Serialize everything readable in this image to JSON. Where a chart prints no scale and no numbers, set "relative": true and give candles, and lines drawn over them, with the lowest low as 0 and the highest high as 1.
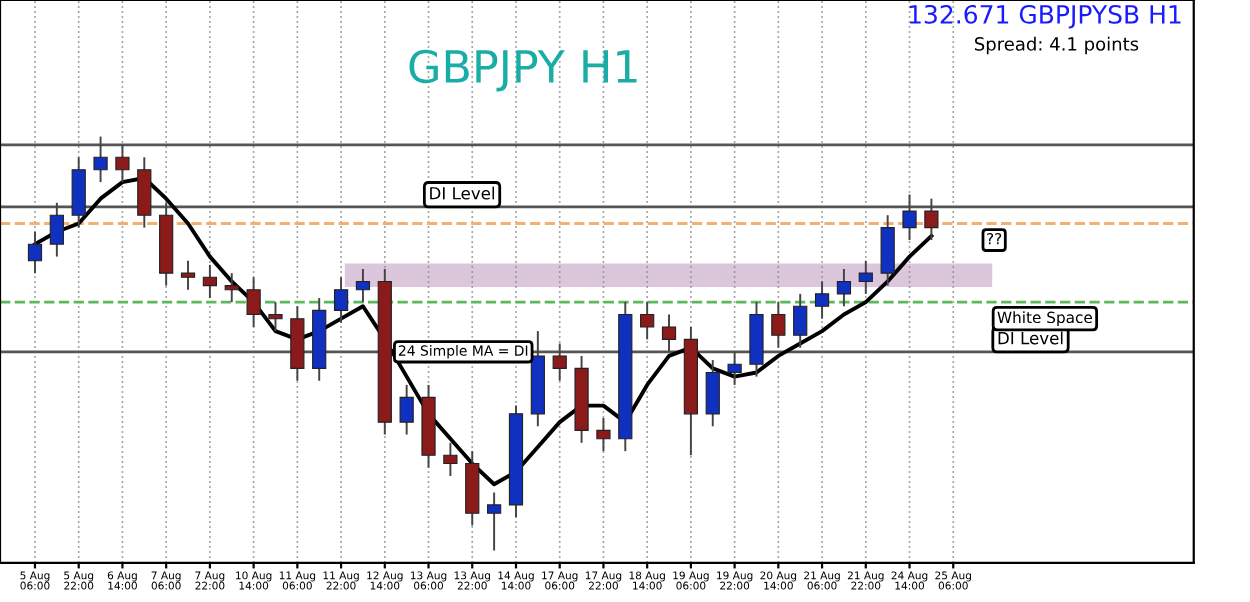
{
  "chart_data": {
    "type": "candlestick",
    "title": "GBPJPY H1",
    "relative": true,
    "grid": "x",
    "tick_labels": "x",
    "legend": false,
    "categories": [
      "5 Aug 06:00",
      null,
      "5 Aug 22:00",
      null,
      "6 Aug 14:00",
      null,
      "7 Aug 06:00",
      null,
      "7 Aug 22:00",
      null,
      "10 Aug 14:00",
      null,
      "11 Aug 06:00",
      null,
      "11 Aug 22:00",
      null,
      "12 Aug 14:00",
      null,
      "13 Aug 06:00",
      null,
      "13 Aug 22:00",
      null,
      "14 Aug 14:00",
      null,
      "17 Aug 06:00",
      null,
      "17 Aug 22:00",
      null,
      "18 Aug 14:00",
      null,
      "19 Aug 06:00",
      null,
      "19 Aug 22:00",
      null,
      "20 Aug 14:00",
      null,
      "21 Aug 06:00",
      null,
      "21 Aug 22:00",
      null,
      "24 Aug 14:00",
      null,
      "25 Aug 06:00"
    ],
    "ohlc": [
      [
        0.7,
        0.77,
        0.67,
        0.74
      ],
      [
        0.74,
        0.84,
        0.71,
        0.81
      ],
      [
        0.81,
        0.95,
        0.78,
        0.92
      ],
      [
        0.92,
        1.0,
        0.89,
        0.95
      ],
      [
        0.95,
        0.98,
        0.89,
        0.92
      ],
      [
        0.92,
        0.95,
        0.78,
        0.81
      ],
      [
        0.81,
        0.84,
        0.64,
        0.67
      ],
      [
        0.67,
        0.7,
        0.63,
        0.66
      ],
      [
        0.66,
        0.69,
        0.61,
        0.64
      ],
      [
        0.64,
        0.67,
        0.6,
        0.63
      ],
      [
        0.63,
        0.66,
        0.54,
        0.57
      ],
      [
        0.57,
        0.6,
        0.53,
        0.56
      ],
      [
        0.56,
        0.59,
        0.41,
        0.44
      ],
      [
        0.44,
        0.61,
        0.41,
        0.58
      ],
      [
        0.58,
        0.66,
        0.55,
        0.63
      ],
      [
        0.63,
        0.68,
        0.6,
        0.65
      ],
      [
        0.65,
        0.68,
        0.28,
        0.31
      ],
      [
        0.31,
        0.4,
        0.28,
        0.37
      ],
      [
        0.37,
        0.4,
        0.2,
        0.23
      ],
      [
        0.23,
        0.26,
        0.18,
        0.21
      ],
      [
        0.21,
        0.24,
        0.06,
        0.09
      ],
      [
        0.09,
        0.14,
        0.0,
        0.11
      ],
      [
        0.11,
        0.35,
        0.08,
        0.33
      ],
      [
        0.33,
        0.53,
        0.3,
        0.47
      ],
      [
        0.47,
        0.5,
        0.41,
        0.44
      ],
      [
        0.44,
        0.47,
        0.26,
        0.29
      ],
      [
        0.29,
        0.32,
        0.24,
        0.27
      ],
      [
        0.27,
        0.6,
        0.24,
        0.57
      ],
      [
        0.57,
        0.6,
        0.51,
        0.54
      ],
      [
        0.54,
        0.57,
        0.48,
        0.51
      ],
      [
        0.51,
        0.54,
        0.23,
        0.33
      ],
      [
        0.33,
        0.46,
        0.3,
        0.43
      ],
      [
        0.43,
        0.48,
        0.4,
        0.45
      ],
      [
        0.45,
        0.6,
        0.42,
        0.57
      ],
      [
        0.57,
        0.6,
        0.49,
        0.52
      ],
      [
        0.52,
        0.62,
        0.49,
        0.59
      ],
      [
        0.59,
        0.65,
        0.56,
        0.62
      ],
      [
        0.62,
        0.68,
        0.59,
        0.65
      ],
      [
        0.65,
        0.7,
        0.62,
        0.67
      ],
      [
        0.67,
        0.81,
        0.64,
        0.78
      ],
      [
        0.78,
        0.86,
        0.75,
        0.82
      ],
      [
        0.82,
        0.85,
        0.75,
        0.78
      ],
      null
    ],
    "series": [
      {
        "type": "line",
        "color": "#000000",
        "values": [
          0.74,
          0.77,
          0.79,
          0.85,
          0.89,
          0.9,
          0.85,
          0.79,
          0.71,
          0.65,
          0.6,
          0.53,
          0.51,
          0.53,
          0.56,
          0.59,
          0.51,
          0.42,
          0.33,
          0.27,
          0.21,
          0.16,
          0.19,
          0.25,
          0.31,
          0.35,
          0.35,
          0.31,
          0.4,
          0.47,
          0.49,
          0.44,
          0.42,
          0.43,
          0.47,
          0.5,
          0.53,
          0.57,
          0.6,
          0.65,
          0.71,
          0.76,
          null
        ]
      }
    ],
    "ref_lines": [
      {
        "axis": "y",
        "value": 0.98,
        "label": null,
        "color": "#555555",
        "line_style": "solid"
      },
      {
        "axis": "y",
        "value": 0.83,
        "label": "DI Level",
        "color": "#555555",
        "line_style": "solid"
      },
      {
        "axis": "y",
        "value": 0.79,
        "label": null,
        "color": "#f5b070",
        "line_style": "dashed"
      },
      {
        "axis": "y",
        "value": 0.6,
        "label": null,
        "color": "#5cb85c",
        "line_style": "dashed"
      },
      {
        "axis": "y",
        "value": 0.48,
        "label": "DI Level",
        "color": "#555555",
        "line_style": "solid"
      }
    ],
    "bands": [
      {
        "axis": "y",
        "from": 0.64,
        "to": 0.69,
        "label": null,
        "color": "#dcc6dc"
      }
    ],
    "annotations": [
      "132.671 GBPJPYSB H1",
      "Spread: 4.1 points",
      "24 Simple MA = DI",
      "White Space",
      "??"
    ]
  }
}
